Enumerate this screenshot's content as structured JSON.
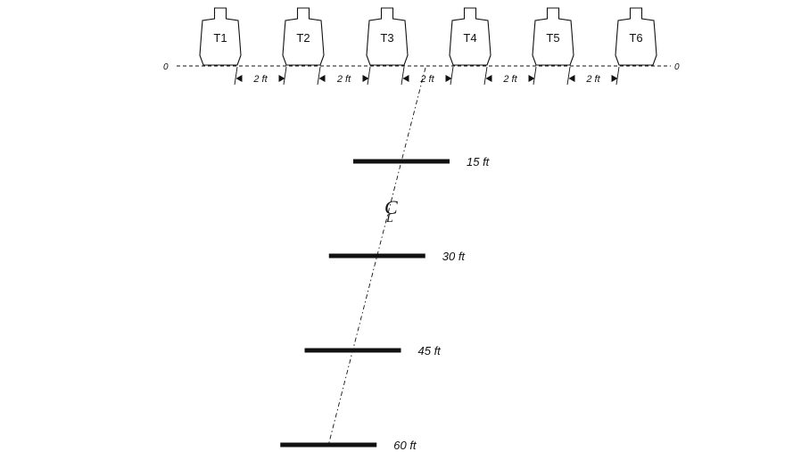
{
  "targets": [
    {
      "label": "T1"
    },
    {
      "label": "T2"
    },
    {
      "label": "T3"
    },
    {
      "label": "T4"
    },
    {
      "label": "T5"
    },
    {
      "label": "T6"
    }
  ],
  "baseline": {
    "left_label": "0",
    "right_label": "0"
  },
  "spacings": [
    {
      "label": "2 ft"
    },
    {
      "label": "2 ft"
    },
    {
      "label": "2 ft"
    },
    {
      "label": "2 ft"
    },
    {
      "label": "2 ft"
    }
  ],
  "centerline": {
    "symbol": "C",
    "symbol_sub": "L"
  },
  "firing_lines": [
    {
      "label": "15 ft",
      "distance_ft": 15
    },
    {
      "label": "30 ft",
      "distance_ft": 30
    },
    {
      "label": "45 ft",
      "distance_ft": 45
    },
    {
      "label": "60 ft",
      "distance_ft": 60
    }
  ]
}
